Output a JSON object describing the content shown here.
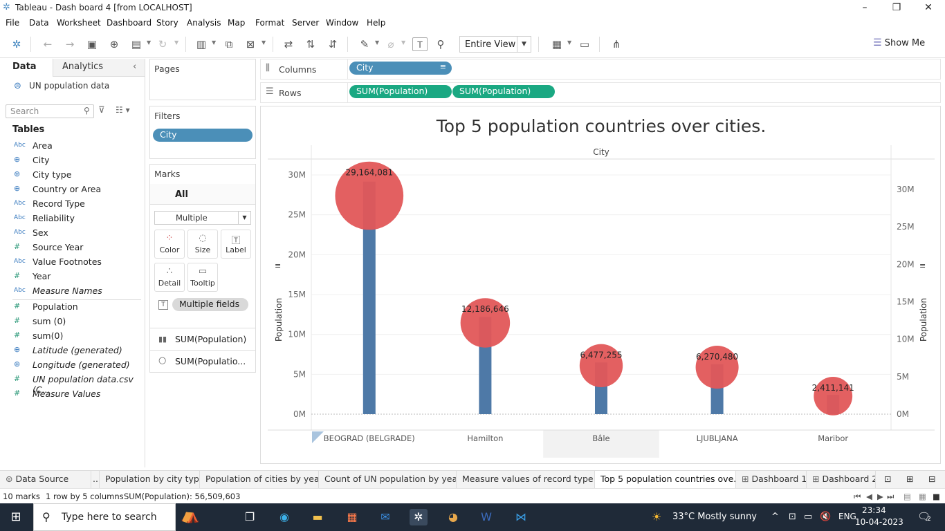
{
  "window": {
    "title": "Tableau - Dash board 4 [from LOCALHOST]"
  },
  "menu": [
    "File",
    "Data",
    "Worksheet",
    "Dashboard",
    "Story",
    "Analysis",
    "Map",
    "Format",
    "Server",
    "Window",
    "Help"
  ],
  "toolbar": {
    "fit_mode": "Entire View",
    "show_me": "Show Me"
  },
  "left_pane": {
    "tab_data": "Data",
    "tab_analytics": "Analytics",
    "datasource": "UN population data",
    "search_placeholder": "Search",
    "tables_header": "Tables",
    "fields": [
      {
        "type": "Abc",
        "name": "Area"
      },
      {
        "type": "geo",
        "name": "City"
      },
      {
        "type": "geo",
        "name": "City type"
      },
      {
        "type": "geo",
        "name": "Country or Area"
      },
      {
        "type": "Abc",
        "name": "Record Type"
      },
      {
        "type": "Abc",
        "name": "Reliability"
      },
      {
        "type": "Abc",
        "name": "Sex"
      },
      {
        "type": "#",
        "name": "Source Year"
      },
      {
        "type": "Abc",
        "name": "Value Footnotes"
      },
      {
        "type": "#",
        "name": "Year"
      },
      {
        "type": "Abc",
        "name": "Measure Names"
      },
      {
        "type": "#",
        "name": "Population"
      },
      {
        "type": "#",
        "name": "sum (0)"
      },
      {
        "type": "#",
        "name": "sum(0)"
      },
      {
        "type": "geo",
        "name": "Latitude (generated)"
      },
      {
        "type": "geo",
        "name": "Longitude (generated)"
      },
      {
        "type": "#",
        "name": "UN population data.csv (C..."
      },
      {
        "type": "#",
        "name": "Measure Values"
      }
    ]
  },
  "pages": {
    "header": "Pages"
  },
  "filters": {
    "header": "Filters",
    "pill": "City"
  },
  "marks": {
    "header": "Marks",
    "all": "All",
    "type": "Multiple",
    "color": "Color",
    "size": "Size",
    "label": "Label",
    "detail": "Detail",
    "tooltip": "Tooltip",
    "field_pill": "Multiple fields",
    "measure1": "SUM(Population)",
    "measure2": "SUM(Populatio..."
  },
  "shelves": {
    "columns_label": "Columns",
    "rows_label": "Rows",
    "column_pill": "City",
    "row_pill_1": "SUM(Population)",
    "row_pill_2": "SUM(Population)"
  },
  "chart_data": {
    "type": "bar",
    "title": "Top 5 population countries over cities.",
    "column_header": "City",
    "categories": [
      "BEOGRAD (BELGRADE)",
      "Hamilton",
      "Bâle",
      "LJUBLJANA",
      "Maribor"
    ],
    "series": [
      {
        "values": [
          29164081,
          12186646,
          6477255,
          6270480,
          2411141
        ]
      }
    ],
    "data_labels": [
      "29,164,081",
      "12,186,646",
      "6,477,255",
      "6,270,480",
      "2,411,141"
    ],
    "ylabel_left": "Population",
    "ylabel_right": "Population",
    "left_ticks": [
      "0M",
      "5M",
      "10M",
      "15M",
      "20M",
      "25M",
      "30M"
    ],
    "right_ticks": [
      "0M",
      "5M",
      "10M",
      "15M",
      "20M",
      "25M",
      "30M"
    ],
    "ylim_left": [
      0,
      30000000
    ],
    "ylim_right": [
      0,
      30000000
    ],
    "bar_color": "#4e79a7",
    "circle_color": "#e15759"
  },
  "tabs": [
    {
      "label": "Data Source"
    },
    {
      "label": ".."
    },
    {
      "label": "Population by city type"
    },
    {
      "label": "Population of cities by year"
    },
    {
      "label": "Count of UN population by years"
    },
    {
      "label": "Measure values of record type p..."
    },
    {
      "label": "Top 5 population countries ove...",
      "active": true
    },
    {
      "label": "Dashboard 1"
    },
    {
      "label": "Dashboard 2"
    }
  ],
  "status": {
    "marks": "10 marks",
    "rows": "1 row by 5 columns",
    "sum": "SUM(Population): 56,509,603"
  },
  "taskbar": {
    "search": "Type here to search",
    "weather": "33°C  Mostly sunny",
    "lang": "ENG",
    "time": "23:34",
    "date": "10-04-2023",
    "notif": "2"
  }
}
